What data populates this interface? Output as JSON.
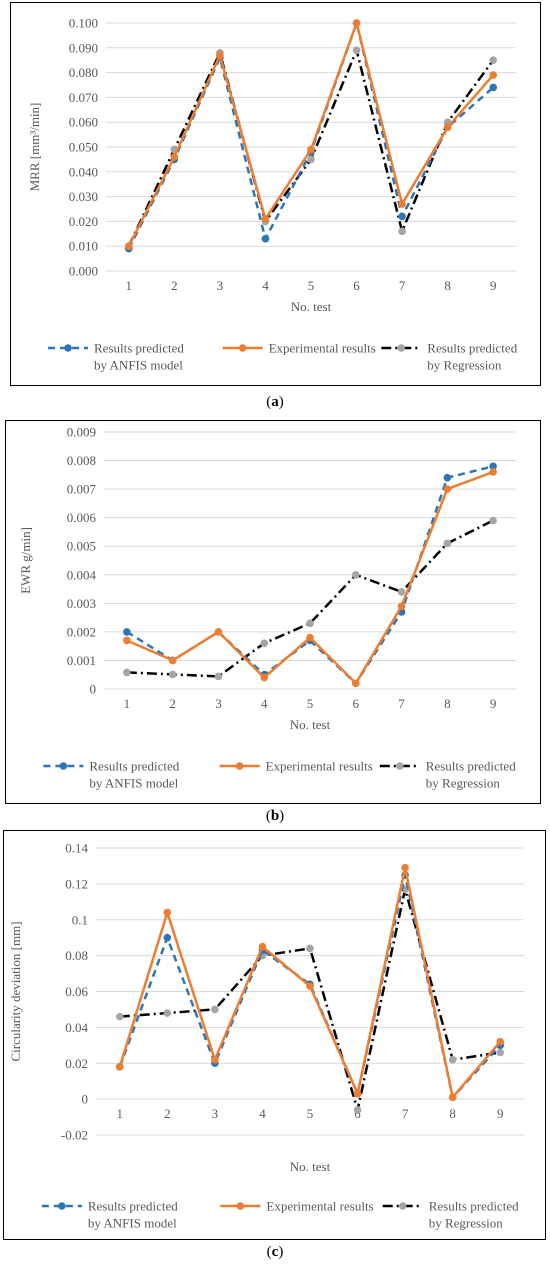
{
  "figure": {
    "captions": [
      "a",
      "b",
      "c"
    ]
  },
  "colors": {
    "anfis": "#2E75B6",
    "experimental": "#ED7D31",
    "regression_line": "#000000",
    "regression_marker": "#A5A5A5",
    "grid": "#D9D9D9",
    "text": "#595959"
  },
  "chart_data": [
    {
      "type": "line",
      "xlabel": "No. test",
      "ylabel": "MRR [mm³/min]",
      "categories": [
        "1",
        "2",
        "3",
        "4",
        "5",
        "6",
        "7",
        "8",
        "9"
      ],
      "ylim": [
        0,
        0.1
      ],
      "yticks": [
        "0.000",
        "0.010",
        "0.020",
        "0.030",
        "0.040",
        "0.050",
        "0.060",
        "0.070",
        "0.080",
        "0.090",
        "0.100"
      ],
      "ytick_values": [
        0,
        0.01,
        0.02,
        0.03,
        0.04,
        0.05,
        0.06,
        0.07,
        0.08,
        0.09,
        0.1
      ],
      "grid": true,
      "legend_position": "bottom",
      "series": [
        {
          "name": "Results predicted by ANFIS model",
          "legend_lines": [
            "Results predicted",
            "by ANFIS model"
          ],
          "values": [
            0.009,
            0.045,
            0.086,
            0.013,
            0.048,
            0.1,
            0.022,
            0.058,
            0.074
          ]
        },
        {
          "name": "Experimental results",
          "legend_lines": [
            "Experimental results"
          ],
          "values": [
            0.01,
            0.046,
            0.087,
            0.021,
            0.049,
            0.1,
            0.027,
            0.058,
            0.079
          ]
        },
        {
          "name": "Results predicted by Regression",
          "legend_lines": [
            "Results predicted",
            "by Regression"
          ],
          "values": [
            0.01,
            0.049,
            0.088,
            0.02,
            0.045,
            0.089,
            0.016,
            0.06,
            0.085
          ]
        }
      ]
    },
    {
      "type": "line",
      "xlabel": "No. test",
      "ylabel": "EWR g/min]",
      "categories": [
        "1",
        "2",
        "3",
        "4",
        "5",
        "6",
        "7",
        "8",
        "9"
      ],
      "ylim": [
        0,
        0.009
      ],
      "yticks": [
        "0",
        "0.001",
        "0.002",
        "0.003",
        "0.004",
        "0.005",
        "0.006",
        "0.007",
        "0.008",
        "0.009"
      ],
      "ytick_values": [
        0,
        0.001,
        0.002,
        0.003,
        0.004,
        0.005,
        0.006,
        0.007,
        0.008,
        0.009
      ],
      "grid": true,
      "legend_position": "bottom",
      "series": [
        {
          "name": "Results predicted by ANFIS model",
          "legend_lines": [
            "Results predicted",
            "by ANFIS model"
          ],
          "values": [
            0.002,
            0.001,
            0.002,
            0.0005,
            0.0017,
            0.0002,
            0.0027,
            0.0074,
            0.0078
          ]
        },
        {
          "name": "Experimental results",
          "legend_lines": [
            "Experimental results"
          ],
          "values": [
            0.0017,
            0.001,
            0.002,
            0.0004,
            0.0018,
            0.0002,
            0.0029,
            0.007,
            0.0076
          ]
        },
        {
          "name": "Results predicted by Regression",
          "legend_lines": [
            "Results predicted",
            "by Regression"
          ],
          "values": [
            0.00058,
            0.00051,
            0.00044,
            0.0016,
            0.0023,
            0.004,
            0.0034,
            0.0051,
            0.0059
          ]
        }
      ]
    },
    {
      "type": "line",
      "xlabel": "No. test",
      "ylabel": "Circularity deviation [mm]",
      "categories": [
        "1",
        "2",
        "3",
        "4",
        "5",
        "6",
        "7",
        "8",
        "9"
      ],
      "ylim": [
        -0.02,
        0.14
      ],
      "yticks": [
        "-0.02",
        "0",
        "0.02",
        "0.04",
        "0.06",
        "0.08",
        "0.1",
        "0.12",
        "0.14"
      ],
      "ytick_values": [
        -0.02,
        0,
        0.02,
        0.04,
        0.06,
        0.08,
        0.1,
        0.12,
        0.14
      ],
      "grid": true,
      "legend_position": "bottom",
      "series": [
        {
          "name": "Results predicted by ANFIS model",
          "legend_lines": [
            "Results predicted",
            "by ANFIS model"
          ],
          "values": [
            0.018,
            0.09,
            0.02,
            0.083,
            0.064,
            0.003,
            0.125,
            0.001,
            0.03
          ]
        },
        {
          "name": "Experimental results",
          "legend_lines": [
            "Experimental results"
          ],
          "values": [
            0.018,
            0.104,
            0.022,
            0.085,
            0.063,
            0.003,
            0.129,
            0.001,
            0.032
          ]
        },
        {
          "name": "Results predicted by Regression",
          "legend_lines": [
            "Results predicted",
            "by Regression"
          ],
          "values": [
            0.046,
            0.048,
            0.05,
            0.08,
            0.084,
            -0.006,
            0.117,
            0.022,
            0.026
          ]
        }
      ]
    }
  ]
}
